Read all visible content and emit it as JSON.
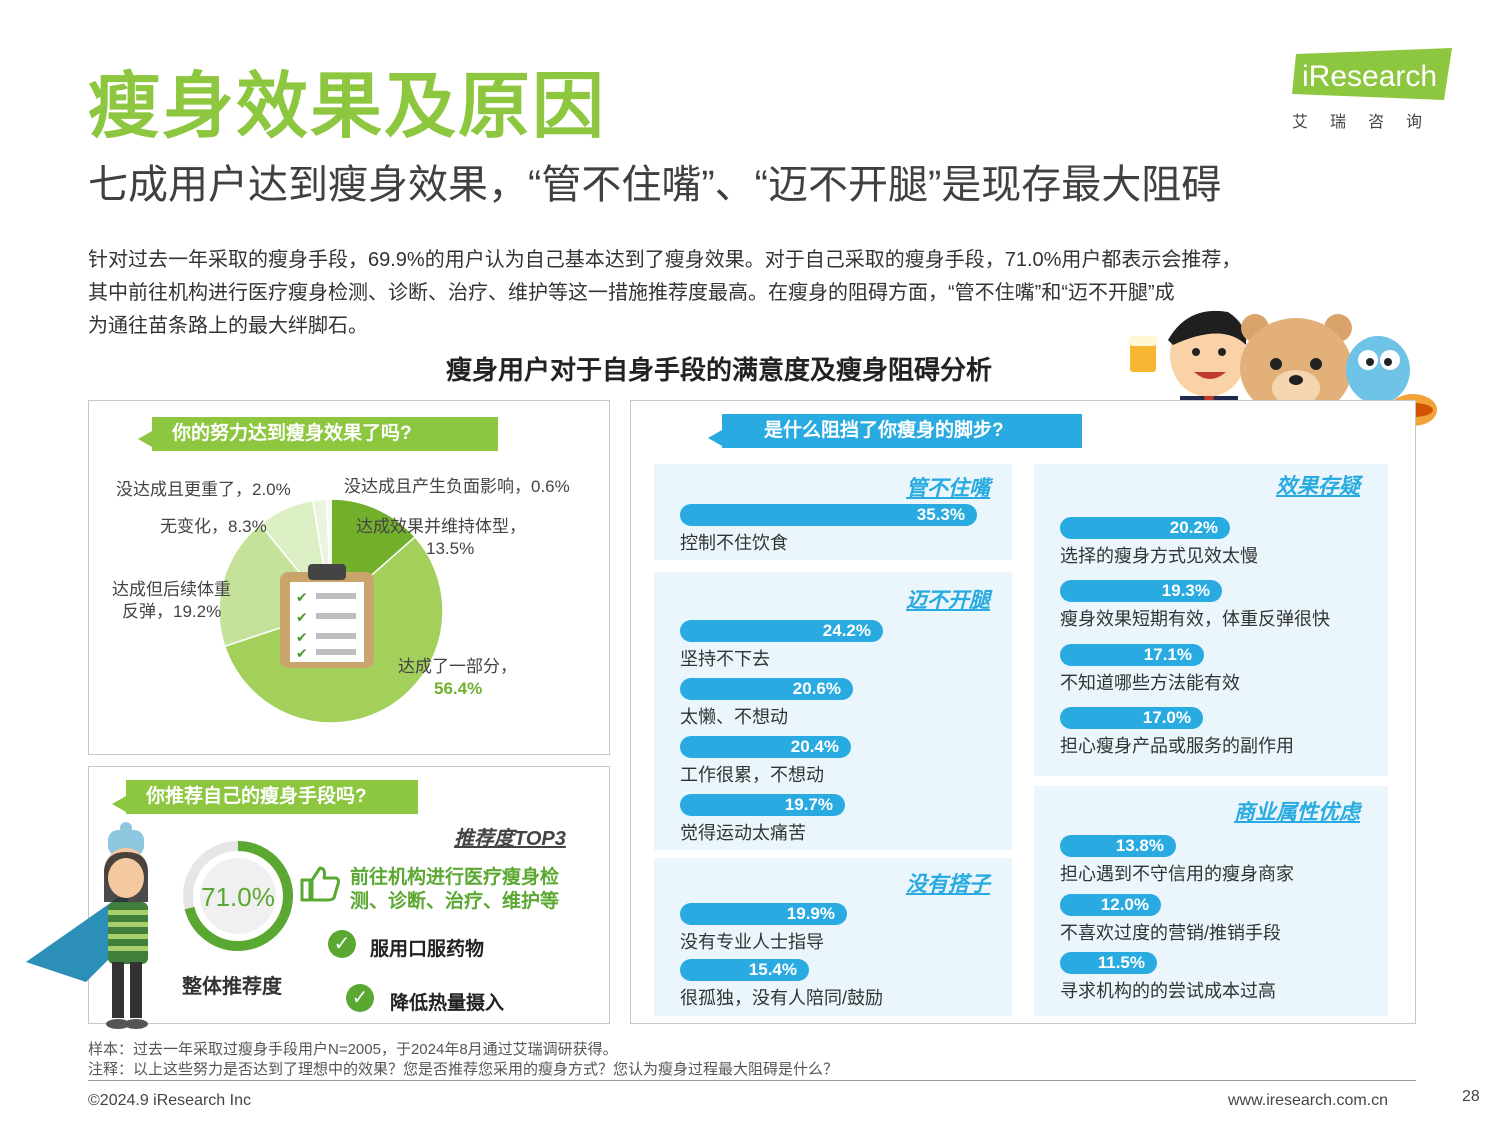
{
  "header": {
    "title": "瘦身效果及原因",
    "subtitle": "七成用户达到瘦身效果，“管不住嘴”、“迈不开腿”是现存最大阻碍",
    "logo_text": "iResearch",
    "logo_cn": "艾瑞咨询"
  },
  "intro": [
    "针对过去一年采取的瘦身手段，69.9%的用户认为自己基本达到了瘦身效果。对于自己采取的瘦身手段，71.0%用户都表示会推荐，",
    "其中前往机构进行医疗瘦身检测、诊断、治疗、维护等这一措施推荐度最高。在瘦身的阻碍方面，“管不住嘴”和“迈不开腿”成",
    "为通往苗条路上的最大绊脚石。"
  ],
  "figure_title": "瘦身用户对于自身手段的满意度及瘦身阻碍分析",
  "panel_effect": {
    "tag": "你的努力达到瘦身效果了吗?"
  },
  "panel_recommend": {
    "tag": "你推荐自己的瘦身手段吗?",
    "top3_title": "推荐度TOP3",
    "gauge_value": "71.0%",
    "gauge_fraction": 0.71,
    "gauge_label": "整体推荐度",
    "top3": [
      "前往机构进行医疗瘦身检",
      "测、诊断、治疗、维护等",
      "服用口服药物",
      "降低热量摄入"
    ]
  },
  "panel_barrier": {
    "tag": "是什么阻挡了你瘦身的脚步?"
  },
  "chart_data": [
    {
      "type": "pie",
      "title": "你的努力达到瘦身效果了吗?",
      "slices": [
        {
          "label": "达成效果并维持体型，",
          "label2": "13.5%",
          "value": 13.5,
          "color": "#72b02c"
        },
        {
          "label": "达成了一部分，",
          "label2": "56.4%",
          "value": 56.4,
          "color": "#a2d05a"
        },
        {
          "label": "达成但后续体重",
          "label2": "反弹，19.2%",
          "value": 19.2,
          "color": "#c4e29a"
        },
        {
          "label": "无变化，8.3%",
          "label2": "",
          "value": 8.3,
          "color": "#dcefc4"
        },
        {
          "label": "没达成且更重了，2.0%",
          "label2": "",
          "value": 2.0,
          "color": "#ebf5de"
        },
        {
          "label": "没达成且产生负面影响，0.6%",
          "label2": "",
          "value": 0.6,
          "color": "#f4f9ec"
        }
      ]
    },
    {
      "type": "bar",
      "title": "是什么阻挡了你瘦身的脚步?",
      "groups": [
        {
          "name": "管不住嘴",
          "items": [
            {
              "label": "控制不住饮食",
              "value": 35.3,
              "text": "35.3%"
            }
          ]
        },
        {
          "name": "迈不开腿",
          "items": [
            {
              "label": "坚持不下去",
              "value": 24.2,
              "text": "24.2%"
            },
            {
              "label": "太懒、不想动",
              "value": 20.6,
              "text": "20.6%"
            },
            {
              "label": "工作很累，不想动",
              "value": 20.4,
              "text": "20.4%"
            },
            {
              "label": "觉得运动太痛苦",
              "value": 19.7,
              "text": "19.7%"
            }
          ]
        },
        {
          "name": "没有搭子",
          "items": [
            {
              "label": "没有专业人士指导",
              "value": 19.9,
              "text": "19.9%"
            },
            {
              "label": "很孤独，没有人陪同/鼓励",
              "value": 15.4,
              "text": "15.4%"
            }
          ]
        },
        {
          "name": "效果存疑",
          "items": [
            {
              "label": "选择的瘦身方式见效太慢",
              "value": 20.2,
              "text": "20.2%"
            },
            {
              "label": "瘦身效果短期有效，体重反弹很快",
              "value": 19.3,
              "text": "19.3%"
            },
            {
              "label": "不知道哪些方法能有效",
              "value": 17.1,
              "text": "17.1%"
            },
            {
              "label": "担心瘦身产品或服务的副作用",
              "value": 17.0,
              "text": "17.0%"
            }
          ]
        },
        {
          "name": "商业属性优虑",
          "items": [
            {
              "label": "担心遇到不守信用的瘦身商家",
              "value": 13.8,
              "text": "13.8%"
            },
            {
              "label": "不喜欢过度的营销/推销手段",
              "value": 12.0,
              "text": "12.0%"
            },
            {
              "label": "寻求机构的的尝试成本过高",
              "value": 11.5,
              "text": "11.5%"
            }
          ]
        }
      ]
    }
  ],
  "notes": {
    "sample": "样本：过去一年采取过瘦身手段用户N=2005，于2024年8月通过艾瑞调研获得。",
    "note": "注释：以上这些努力是否达到了理想中的效果？您是否推荐您采用的瘦身方式？您认为瘦身过程最大阻碍是什么？"
  },
  "footer": {
    "copyright": "©2024.9 iResearch Inc",
    "url": "www.iresearch.com.cn",
    "page": "28"
  },
  "colors": {
    "green": "#8dc63f",
    "blue": "#29abe2"
  }
}
